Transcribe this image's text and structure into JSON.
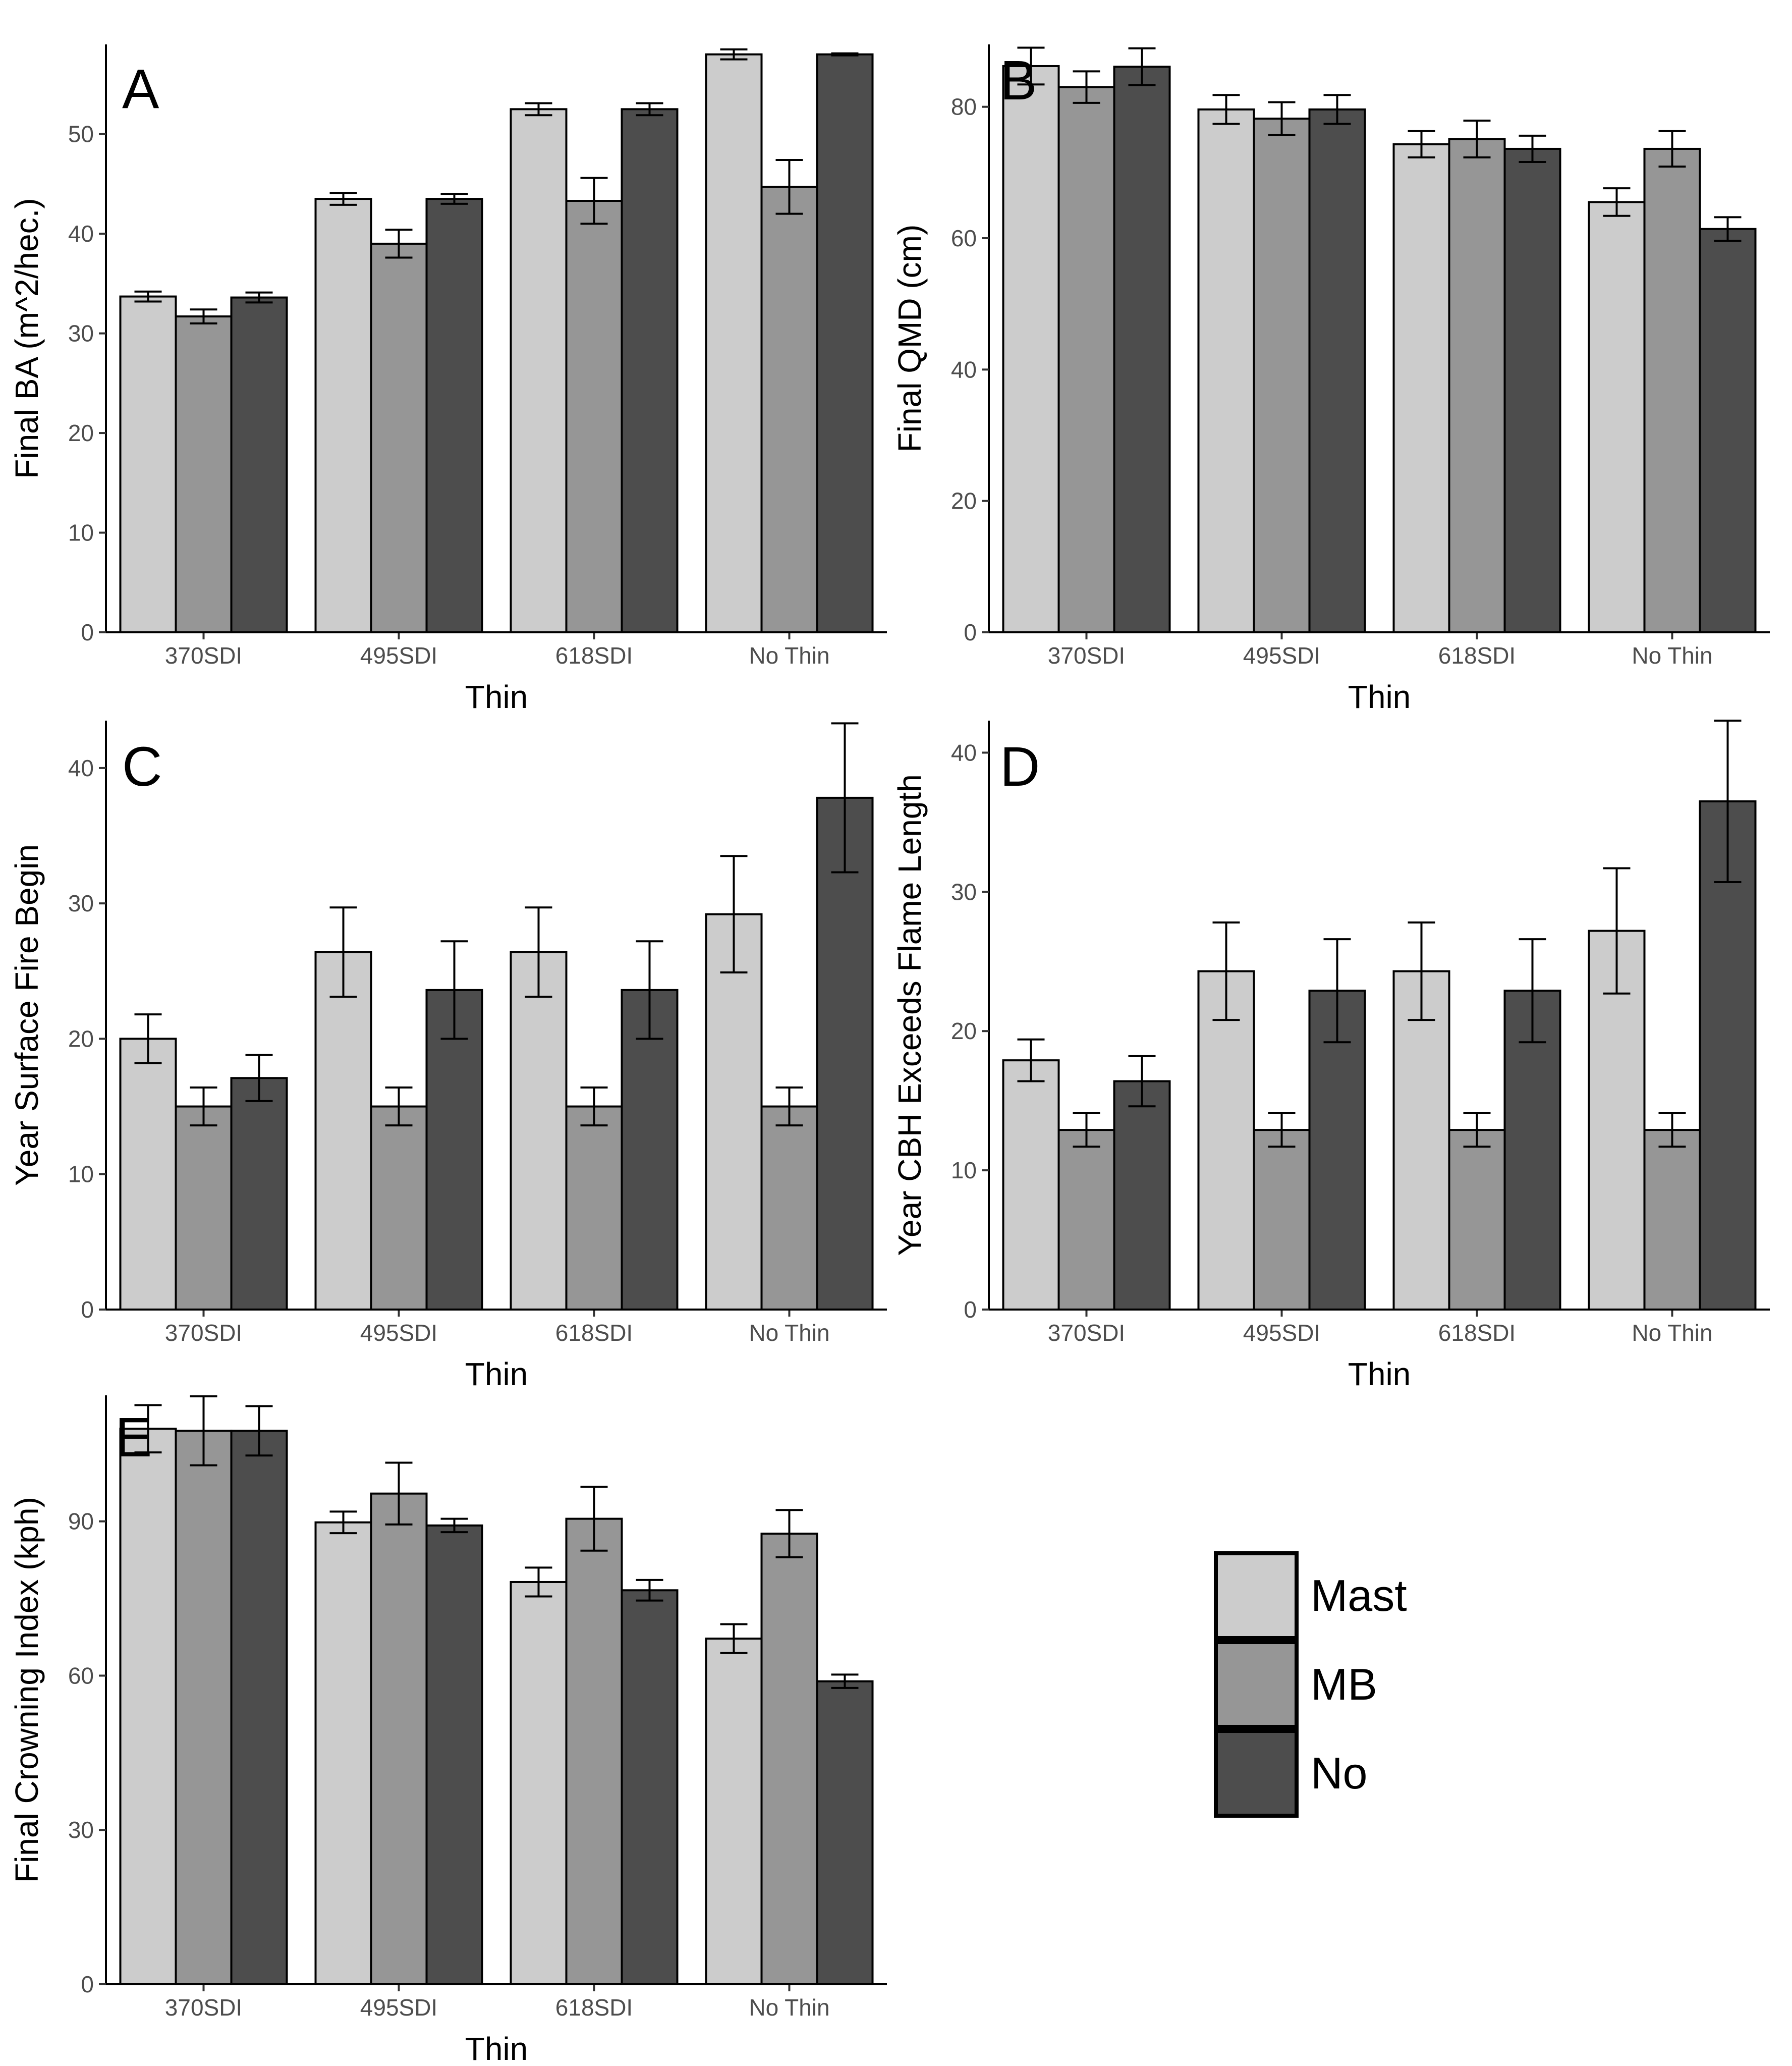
{
  "colors": {
    "Mast": "#cccccc",
    "MB": "#969696",
    "No": "#4d4d4d"
  },
  "legend": {
    "entries": [
      "Mast",
      "MB",
      "No"
    ]
  },
  "chart_data": [
    {
      "panel": "A",
      "type": "bar",
      "categories": [
        "370SDI",
        "495SDI",
        "618SDI",
        "No Thin"
      ],
      "xlabel": "Thin",
      "ylabel": "Final BA (m^2/hec.)",
      "ylim": [
        0,
        59
      ],
      "yticks": [
        0,
        10,
        20,
        30,
        40,
        50
      ],
      "series": [
        {
          "name": "Mast",
          "values": [
            33.7,
            43.5,
            52.5,
            58.0
          ],
          "err": [
            0.5,
            0.6,
            0.6,
            0.5
          ]
        },
        {
          "name": "MB",
          "values": [
            31.7,
            39.0,
            43.3,
            44.7
          ],
          "err": [
            0.7,
            1.4,
            2.3,
            2.7
          ]
        },
        {
          "name": "No",
          "values": [
            33.6,
            43.5,
            52.5,
            58.0
          ],
          "err": [
            0.5,
            0.5,
            0.6,
            0.1
          ]
        }
      ]
    },
    {
      "panel": "B",
      "type": "bar",
      "categories": [
        "370SDI",
        "495SDI",
        "618SDI",
        "No Thin"
      ],
      "xlabel": "Thin",
      "ylabel": "Final QMD (cm)",
      "ylim": [
        0,
        89.5
      ],
      "yticks": [
        0,
        20,
        40,
        60,
        80
      ],
      "series": [
        {
          "name": "Mast",
          "values": [
            86.2,
            79.6,
            74.3,
            65.5
          ],
          "err": [
            2.8,
            2.2,
            2.0,
            2.1
          ]
        },
        {
          "name": "MB",
          "values": [
            83.0,
            78.2,
            75.1,
            73.6
          ],
          "err": [
            2.4,
            2.5,
            2.8,
            2.7
          ]
        },
        {
          "name": "No",
          "values": [
            86.1,
            79.6,
            73.6,
            61.4
          ],
          "err": [
            2.8,
            2.2,
            2.0,
            1.8
          ]
        }
      ]
    },
    {
      "panel": "C",
      "type": "bar",
      "categories": [
        "370SDI",
        "495SDI",
        "618SDI",
        "No Thin"
      ],
      "xlabel": "Thin",
      "ylabel": "Year Surface Fire Begin",
      "ylim": [
        0,
        43.5
      ],
      "yticks": [
        0,
        10,
        20,
        30,
        40
      ],
      "series": [
        {
          "name": "Mast",
          "values": [
            20.0,
            26.4,
            26.4,
            29.2
          ],
          "err": [
            1.8,
            3.3,
            3.3,
            4.3
          ]
        },
        {
          "name": "MB",
          "values": [
            15.0,
            15.0,
            15.0,
            15.0
          ],
          "err": [
            1.4,
            1.4,
            1.4,
            1.4
          ]
        },
        {
          "name": "No",
          "values": [
            17.1,
            23.6,
            23.6,
            37.8
          ],
          "err": [
            1.7,
            3.6,
            3.6,
            5.5
          ]
        }
      ]
    },
    {
      "panel": "D",
      "type": "bar",
      "categories": [
        "370SDI",
        "495SDI",
        "618SDI",
        "No Thin"
      ],
      "xlabel": "Thin",
      "ylabel": "Year CBH Exceeds Flame Length",
      "ylim": [
        0,
        42.3
      ],
      "yticks": [
        0,
        10,
        20,
        30,
        40
      ],
      "series": [
        {
          "name": "Mast",
          "values": [
            17.9,
            24.3,
            24.3,
            27.2
          ],
          "err": [
            1.5,
            3.5,
            3.5,
            4.5
          ]
        },
        {
          "name": "MB",
          "values": [
            12.9,
            12.9,
            12.9,
            12.9
          ],
          "err": [
            1.2,
            1.2,
            1.2,
            1.2
          ]
        },
        {
          "name": "No",
          "values": [
            16.4,
            22.9,
            22.9,
            36.5
          ],
          "err": [
            1.8,
            3.7,
            3.7,
            5.8
          ]
        }
      ]
    },
    {
      "panel": "E",
      "type": "bar",
      "categories": [
        "370SDI",
        "495SDI",
        "618SDI",
        "No Thin"
      ],
      "xlabel": "Thin",
      "ylabel": "Final Crowning Index (kph)",
      "ylim": [
        0,
        114.5
      ],
      "yticks": [
        0,
        30,
        60,
        90
      ],
      "series": [
        {
          "name": "Mast",
          "values": [
            108.0,
            89.8,
            78.2,
            67.2
          ],
          "err": [
            4.6,
            2.1,
            2.8,
            2.8
          ]
        },
        {
          "name": "MB",
          "values": [
            107.6,
            95.4,
            90.5,
            87.6
          ],
          "err": [
            6.7,
            6.0,
            6.2,
            4.6
          ]
        },
        {
          "name": "No",
          "values": [
            107.6,
            89.2,
            76.6,
            58.9
          ],
          "err": [
            4.8,
            1.3,
            2.0,
            1.3
          ]
        }
      ]
    }
  ]
}
